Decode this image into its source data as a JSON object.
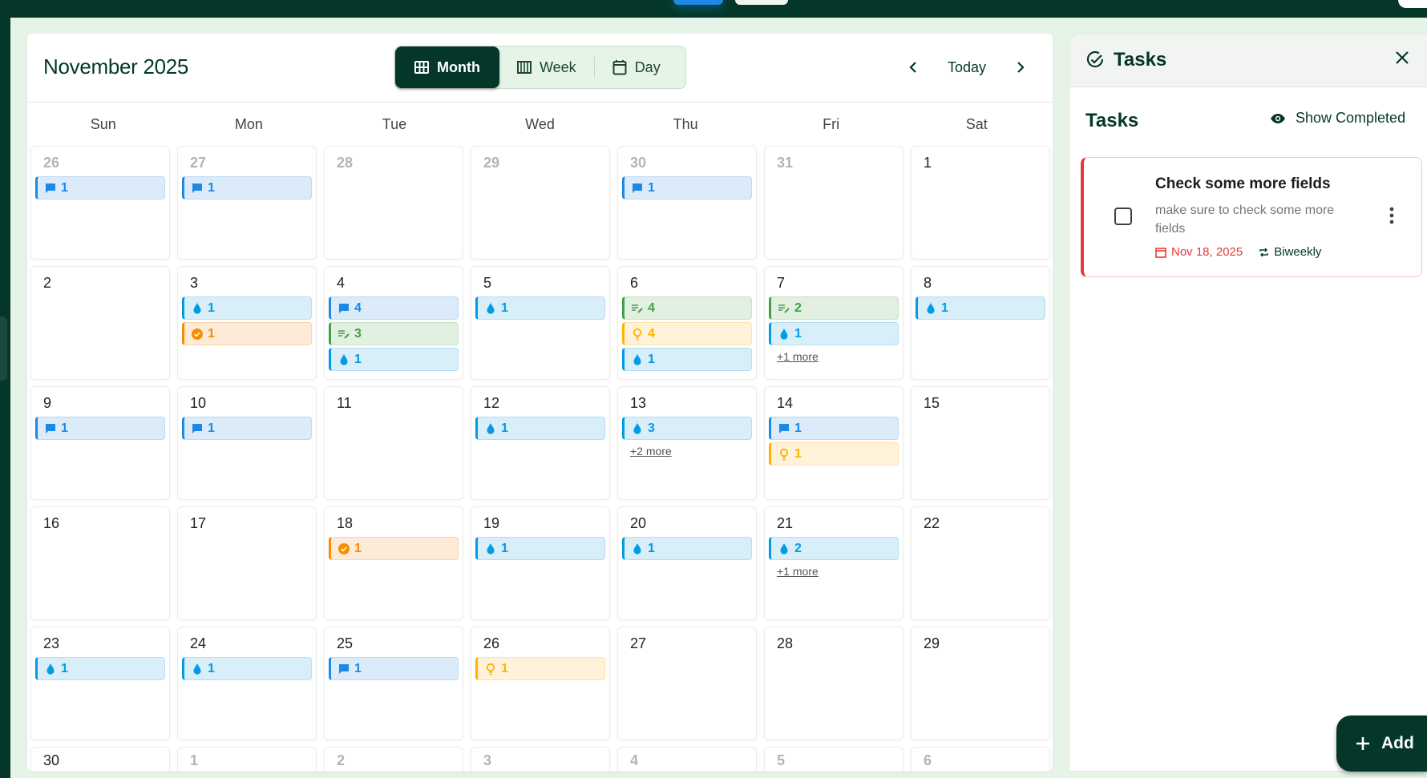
{
  "header": {
    "title": "November 2025"
  },
  "view_switcher": [
    {
      "label": "Month",
      "icon": "grid-icon",
      "active": true
    },
    {
      "label": "Week",
      "icon": "view-week-icon",
      "active": false
    },
    {
      "label": "Day",
      "icon": "calendar-icon",
      "active": false
    }
  ],
  "nav": {
    "today_label": "Today"
  },
  "weekdays": [
    "Sun",
    "Mon",
    "Tue",
    "Wed",
    "Thu",
    "Fri",
    "Sat"
  ],
  "event_types": {
    "comment": {
      "icon": "comment-icon",
      "color": "#1e88e5",
      "bg": "#dcebfa",
      "border": "#bcd9f5"
    },
    "water": {
      "icon": "water-drop-icon",
      "color": "#039be5",
      "bg": "#d8eef9",
      "border": "#b5def3"
    },
    "notes": {
      "icon": "notes-edit-icon",
      "color": "#43a047",
      "bg": "#e1f0e1",
      "border": "#c5e3c6"
    },
    "idea": {
      "icon": "lightbulb-icon",
      "color": "#ffb300",
      "bg": "#fff2d8",
      "border": "#ffe2a6"
    },
    "check": {
      "icon": "check-circle-icon",
      "color": "#fb8c00",
      "bg": "#fdebd7",
      "border": "#fbd5a8"
    }
  },
  "weeks": [
    [
      {
        "day": "26",
        "out": true,
        "events": [
          {
            "type": "comment",
            "count": "1"
          }
        ]
      },
      {
        "day": "27",
        "out": true,
        "events": [
          {
            "type": "comment",
            "count": "1"
          }
        ]
      },
      {
        "day": "28",
        "out": true,
        "events": []
      },
      {
        "day": "29",
        "out": true,
        "events": []
      },
      {
        "day": "30",
        "out": true,
        "events": [
          {
            "type": "comment",
            "count": "1"
          }
        ]
      },
      {
        "day": "31",
        "out": true,
        "events": []
      },
      {
        "day": "1",
        "events": []
      }
    ],
    [
      {
        "day": "2",
        "events": []
      },
      {
        "day": "3",
        "events": [
          {
            "type": "water",
            "count": "1"
          },
          {
            "type": "check",
            "count": "1"
          }
        ]
      },
      {
        "day": "4",
        "events": [
          {
            "type": "comment",
            "count": "4"
          },
          {
            "type": "notes",
            "count": "3"
          },
          {
            "type": "water",
            "count": "1"
          }
        ]
      },
      {
        "day": "5",
        "events": [
          {
            "type": "water",
            "count": "1"
          }
        ]
      },
      {
        "day": "6",
        "events": [
          {
            "type": "notes",
            "count": "4"
          },
          {
            "type": "idea",
            "count": "4"
          },
          {
            "type": "water",
            "count": "1"
          }
        ]
      },
      {
        "day": "7",
        "events": [
          {
            "type": "notes",
            "count": "2"
          },
          {
            "type": "water",
            "count": "1"
          }
        ],
        "more": "+1 more"
      },
      {
        "day": "8",
        "events": [
          {
            "type": "water",
            "count": "1"
          }
        ]
      }
    ],
    [
      {
        "day": "9",
        "events": [
          {
            "type": "comment",
            "count": "1"
          }
        ]
      },
      {
        "day": "10",
        "events": [
          {
            "type": "comment",
            "count": "1"
          }
        ]
      },
      {
        "day": "11",
        "events": []
      },
      {
        "day": "12",
        "events": [
          {
            "type": "water",
            "count": "1"
          }
        ]
      },
      {
        "day": "13",
        "events": [
          {
            "type": "water",
            "count": "3"
          }
        ],
        "more": "+2 more"
      },
      {
        "day": "14",
        "events": [
          {
            "type": "comment",
            "count": "1"
          },
          {
            "type": "idea",
            "count": "1"
          }
        ]
      },
      {
        "day": "15",
        "events": []
      }
    ],
    [
      {
        "day": "16",
        "events": []
      },
      {
        "day": "17",
        "events": []
      },
      {
        "day": "18",
        "events": [
          {
            "type": "check",
            "count": "1"
          }
        ]
      },
      {
        "day": "19",
        "events": [
          {
            "type": "water",
            "count": "1"
          }
        ]
      },
      {
        "day": "20",
        "events": [
          {
            "type": "water",
            "count": "1"
          }
        ]
      },
      {
        "day": "21",
        "events": [
          {
            "type": "water",
            "count": "2"
          }
        ],
        "more": "+1 more"
      },
      {
        "day": "22",
        "events": []
      }
    ],
    [
      {
        "day": "23",
        "events": [
          {
            "type": "water",
            "count": "1"
          }
        ]
      },
      {
        "day": "24",
        "events": [
          {
            "type": "water",
            "count": "1"
          }
        ]
      },
      {
        "day": "25",
        "events": [
          {
            "type": "comment",
            "count": "1"
          }
        ]
      },
      {
        "day": "26",
        "events": [
          {
            "type": "idea",
            "count": "1"
          }
        ]
      },
      {
        "day": "27",
        "events": []
      },
      {
        "day": "28",
        "events": []
      },
      {
        "day": "29",
        "events": []
      }
    ],
    [
      {
        "day": "30",
        "events": []
      },
      {
        "day": "1",
        "out": true,
        "events": []
      },
      {
        "day": "2",
        "out": true,
        "events": []
      },
      {
        "day": "3",
        "out": true,
        "events": []
      },
      {
        "day": "4",
        "out": true,
        "events": []
      },
      {
        "day": "5",
        "out": true,
        "events": []
      },
      {
        "day": "6",
        "out": true,
        "events": []
      }
    ]
  ],
  "tasks_panel": {
    "title": "Tasks",
    "section_title": "Tasks",
    "show_completed_label": "Show Completed",
    "tasks": [
      {
        "title": "Check some more fields",
        "description": "make sure to check some more fields",
        "due": "Nov 18, 2025",
        "recurrence": "Biweekly",
        "accent": "#e53935"
      }
    ],
    "add_label": "Add"
  }
}
